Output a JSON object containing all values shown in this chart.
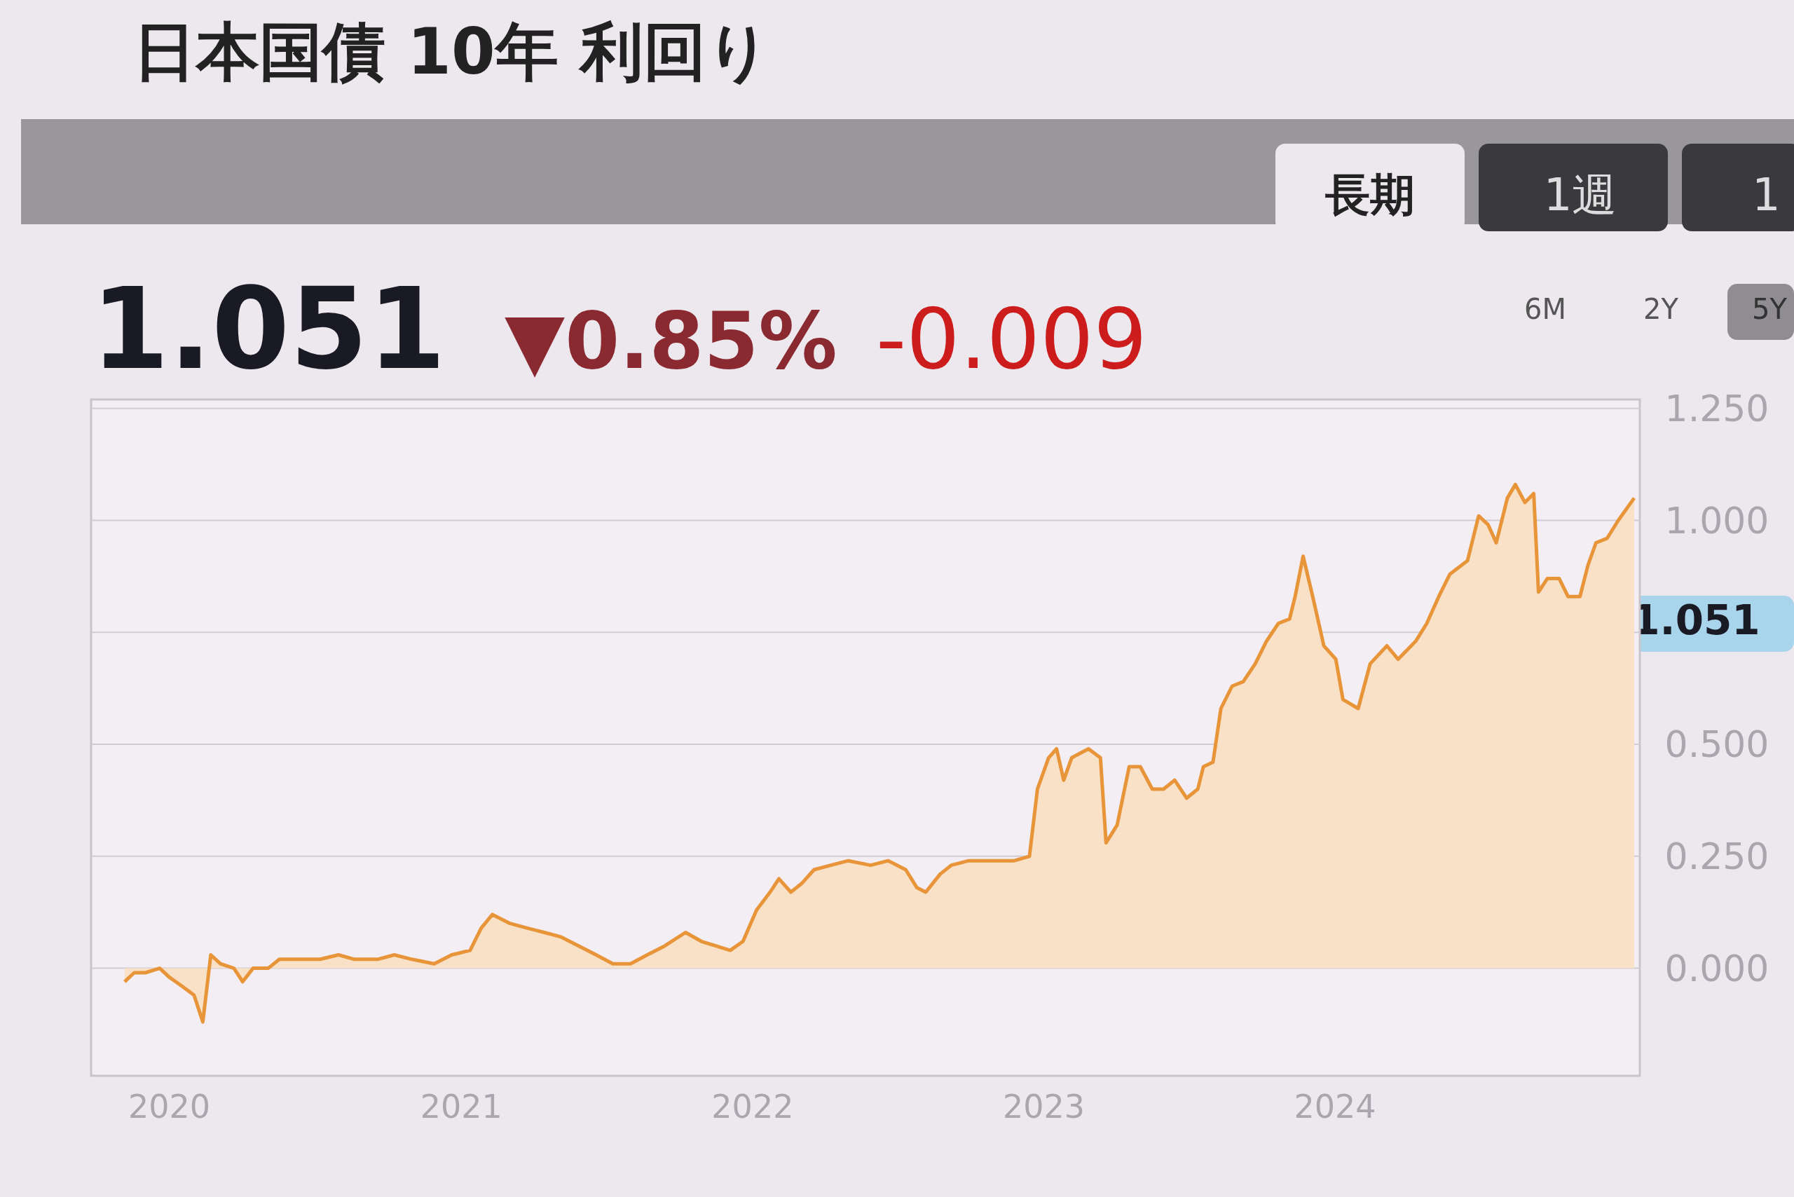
{
  "chart_data": {
    "type": "area",
    "title": "日本国債 10年 利回り",
    "annotations": [
      "長期",
      "1週",
      "1",
      "1.051",
      "▼0.85%",
      "-0.009",
      "6M",
      "2Y",
      "5Y",
      "1.051"
    ],
    "x": [
      "2019-11-06",
      "2019-11-18",
      "2019-12-02",
      "2019-12-20",
      "2020-01-01",
      "2020-01-17",
      "2020-02-01",
      "2020-02-12",
      "2020-02-22",
      "2020-03-05",
      "2020-03-22",
      "2020-04-02",
      "2020-04-15",
      "2020-05-04",
      "2020-05-18",
      "2020-06-12",
      "2020-07-08",
      "2020-07-31",
      "2020-08-20",
      "2020-09-18",
      "2020-10-09",
      "2020-10-31",
      "2020-11-28",
      "2020-12-20",
      "2021-01-12",
      "2021-01-26",
      "2021-02-09",
      "2021-03-03",
      "2021-03-24",
      "2021-04-15",
      "2021-05-06",
      "2021-05-28",
      "2021-06-19",
      "2021-07-10",
      "2021-08-01",
      "2021-08-22",
      "2021-09-13",
      "2021-10-09",
      "2021-10-29",
      "2021-11-16",
      "2021-12-04",
      "2021-12-20",
      "2022-01-06",
      "2022-01-23",
      "2022-02-03",
      "2022-02-18",
      "2022-03-04",
      "2022-03-19",
      "2022-04-09",
      "2022-05-01",
      "2022-05-29",
      "2022-06-20",
      "2022-07-12",
      "2022-07-26",
      "2022-08-06",
      "2022-08-24",
      "2022-09-07",
      "2022-09-29",
      "2022-11-04",
      "2022-11-25",
      "2022-12-14",
      "2022-12-24",
      "2023-01-07",
      "2023-01-17",
      "2023-01-26",
      "2023-02-05",
      "2023-02-26",
      "2023-03-13",
      "2023-03-20",
      "2023-04-03",
      "2023-04-18",
      "2023-05-02",
      "2023-05-17",
      "2023-05-31",
      "2023-06-14",
      "2023-06-29",
      "2023-07-13",
      "2023-07-20",
      "2023-08-01",
      "2023-08-11",
      "2023-08-25",
      "2023-09-08",
      "2023-09-23",
      "2023-10-07",
      "2023-10-22",
      "2023-11-05",
      "2023-11-12",
      "2023-11-22",
      "2023-12-04",
      "2023-12-18",
      "2024-01-02",
      "2024-01-11",
      "2024-01-30",
      "2024-02-14",
      "2024-03-06",
      "2024-03-20",
      "2024-04-11",
      "2024-04-25",
      "2024-05-10",
      "2024-05-24",
      "2024-06-15",
      "2024-06-29",
      "2024-07-11",
      "2024-07-21",
      "2024-08-04",
      "2024-08-14",
      "2024-08-26",
      "2024-09-06",
      "2024-09-12",
      "2024-09-23",
      "2024-10-08",
      "2024-10-19",
      "2024-11-03",
      "2024-11-13",
      "2024-11-23",
      "2024-12-07",
      "2024-12-21",
      "2025-01-10"
    ],
    "values": [
      -0.03,
      -0.01,
      -0.01,
      0.0,
      -0.02,
      -0.04,
      -0.06,
      -0.12,
      0.03,
      0.01,
      0.0,
      -0.03,
      0.0,
      0.0,
      0.02,
      0.02,
      0.02,
      0.03,
      0.02,
      0.02,
      0.03,
      0.02,
      0.01,
      0.03,
      0.04,
      0.09,
      0.12,
      0.1,
      0.09,
      0.08,
      0.07,
      0.05,
      0.03,
      0.01,
      0.01,
      0.03,
      0.05,
      0.08,
      0.06,
      0.05,
      0.04,
      0.06,
      0.13,
      0.17,
      0.2,
      0.17,
      0.19,
      0.22,
      0.23,
      0.24,
      0.23,
      0.24,
      0.22,
      0.18,
      0.17,
      0.21,
      0.23,
      0.24,
      0.24,
      0.24,
      0.25,
      0.4,
      0.47,
      0.49,
      0.42,
      0.47,
      0.49,
      0.47,
      0.28,
      0.32,
      0.45,
      0.45,
      0.4,
      0.4,
      0.42,
      0.38,
      0.4,
      0.45,
      0.46,
      0.58,
      0.63,
      0.64,
      0.68,
      0.73,
      0.77,
      0.78,
      0.83,
      0.92,
      0.83,
      0.72,
      0.69,
      0.6,
      0.58,
      0.68,
      0.72,
      0.69,
      0.73,
      0.77,
      0.83,
      0.88,
      0.91,
      1.01,
      0.99,
      0.95,
      1.05,
      1.08,
      1.04,
      1.06,
      0.84,
      0.87,
      0.87,
      0.83,
      0.83,
      0.9,
      0.95,
      0.96,
      1.0,
      1.05
    ],
    "color": "#e8953a",
    "xlim": [
      "2019-09-25",
      "2025-01-17"
    ],
    "ylim": [
      -0.24,
      1.27
    ],
    "xticks": [
      "2020",
      "2021",
      "2022",
      "2023",
      "2024"
    ],
    "yticks": [
      {
        "value": 0,
        "label": "0.000"
      },
      {
        "value": 0.25,
        "label": "0.250"
      },
      {
        "value": 0.5,
        "label": "0.500"
      },
      {
        "value": 0.75,
        "label": null
      },
      {
        "value": 1.0,
        "label": "1.000"
      },
      {
        "value": 1.25,
        "label": "1.250"
      }
    ],
    "grid": "y"
  }
}
